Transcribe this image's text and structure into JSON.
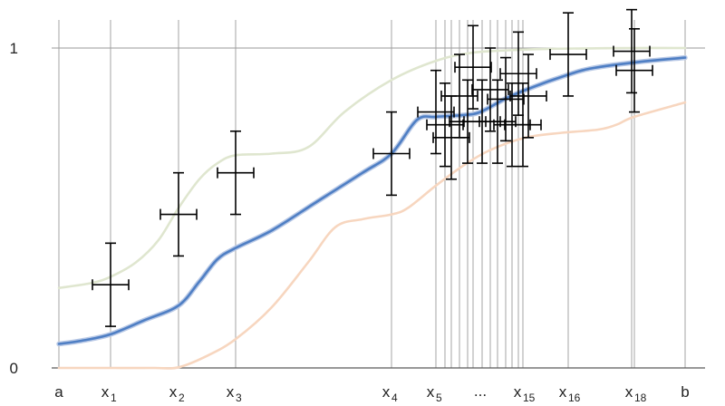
{
  "chart_data": {
    "type": "line",
    "title": "",
    "xlabel": "",
    "ylabel": "",
    "xlim": [
      0,
      800
    ],
    "ylim": [
      0,
      1
    ],
    "y_ticks": [
      {
        "value": 0,
        "label": "0"
      },
      {
        "value": 1,
        "label": "1"
      }
    ],
    "x_ticks": [
      {
        "value": 65,
        "base": "a",
        "sub": ""
      },
      {
        "value": 122,
        "base": "x",
        "sub": "1"
      },
      {
        "value": 197,
        "base": "x",
        "sub": "2"
      },
      {
        "value": 260,
        "base": "x",
        "sub": "3"
      },
      {
        "value": 432,
        "base": "x",
        "sub": "4"
      },
      {
        "value": 481,
        "base": "x",
        "sub": "5"
      },
      {
        "value": 530,
        "base": "...",
        "sub": ""
      },
      {
        "value": 577,
        "base": "x",
        "sub": "15"
      },
      {
        "value": 627,
        "base": "x",
        "sub": "16"
      },
      {
        "value": 700,
        "base": "x",
        "sub": "18"
      },
      {
        "value": 756,
        "base": "b",
        "sub": ""
      }
    ],
    "vertical_gridlines_x": [
      65,
      122,
      197,
      260,
      432,
      481,
      491,
      498,
      507,
      516,
      522,
      532,
      541,
      549,
      558,
      565,
      572,
      577,
      627,
      697,
      700,
      756
    ],
    "grid": true,
    "colors": {
      "mean": "#4f7fc4",
      "mean_halo": "#b9c9e6",
      "upper": "#dfe6cf",
      "lower": "#f7d6bf",
      "error_bars": "#000000",
      "grid": "#9a9a9a",
      "axis": "#5a5a5a"
    },
    "series": [
      {
        "role": "upper",
        "x": [
          65,
          100,
          122,
          150,
          175,
          197,
          220,
          240,
          260,
          300,
          340,
          380,
          432,
          481,
          520,
          560,
          600,
          650,
          700,
          756
        ],
        "values": [
          0.25,
          0.265,
          0.285,
          0.33,
          0.4,
          0.5,
          0.59,
          0.64,
          0.665,
          0.67,
          0.69,
          0.8,
          0.9,
          0.96,
          0.985,
          0.993,
          0.997,
          0.999,
          1.0,
          1.0
        ]
      },
      {
        "role": "mean",
        "x": [
          65,
          90,
          122,
          160,
          197,
          220,
          240,
          260,
          300,
          350,
          400,
          432,
          460,
          481,
          510,
          530,
          560,
          590,
          620,
          650,
          700,
          756
        ],
        "values": [
          0.075,
          0.085,
          0.105,
          0.15,
          0.195,
          0.27,
          0.34,
          0.375,
          0.43,
          0.52,
          0.61,
          0.67,
          0.775,
          0.785,
          0.79,
          0.8,
          0.845,
          0.88,
          0.91,
          0.935,
          0.955,
          0.97
        ]
      },
      {
        "role": "lower",
        "x": [
          65,
          120,
          170,
          197,
          230,
          260,
          300,
          340,
          370,
          400,
          432,
          450,
          481,
          510,
          540,
          580,
          620,
          660,
          680,
          700,
          756
        ],
        "values": [
          0.0,
          0.0,
          0.0,
          0.002,
          0.04,
          0.09,
          0.19,
          0.33,
          0.44,
          0.465,
          0.48,
          0.5,
          0.57,
          0.63,
          0.68,
          0.72,
          0.735,
          0.745,
          0.76,
          0.785,
          0.83
        ]
      }
    ],
    "points": [
      {
        "x": 122,
        "y": 0.26,
        "x_err": 20,
        "y_err": 0.13
      },
      {
        "x": 197,
        "y": 0.48,
        "x_err": 20,
        "y_err": 0.13
      },
      {
        "x": 260,
        "y": 0.61,
        "x_err": 20,
        "y_err": 0.13
      },
      {
        "x": 432,
        "y": 0.67,
        "x_err": 20,
        "y_err": 0.13
      },
      {
        "x": 481,
        "y": 0.8,
        "x_err": 20,
        "y_err": 0.13
      },
      {
        "x": 491,
        "y": 0.76,
        "x_err": 20,
        "y_err": 0.13
      },
      {
        "x": 498,
        "y": 0.72,
        "x_err": 20,
        "y_err": 0.13
      },
      {
        "x": 507,
        "y": 0.85,
        "x_err": 20,
        "y_err": 0.13
      },
      {
        "x": 516,
        "y": 0.77,
        "x_err": 20,
        "y_err": 0.13
      },
      {
        "x": 522,
        "y": 0.94,
        "x_err": 20,
        "y_err": 0.13
      },
      {
        "x": 532,
        "y": 0.77,
        "x_err": 20,
        "y_err": 0.13
      },
      {
        "x": 541,
        "y": 0.87,
        "x_err": 20,
        "y_err": 0.13
      },
      {
        "x": 549,
        "y": 0.77,
        "x_err": 20,
        "y_err": 0.13
      },
      {
        "x": 558,
        "y": 0.84,
        "x_err": 20,
        "y_err": 0.13
      },
      {
        "x": 565,
        "y": 0.76,
        "x_err": 20,
        "y_err": 0.13
      },
      {
        "x": 572,
        "y": 0.92,
        "x_err": 20,
        "y_err": 0.13
      },
      {
        "x": 577,
        "y": 0.76,
        "x_err": 20,
        "y_err": 0.13
      },
      {
        "x": 583,
        "y": 0.85,
        "x_err": 20,
        "y_err": 0.13
      },
      {
        "x": 627,
        "y": 0.98,
        "x_err": 20,
        "y_err": 0.13
      },
      {
        "x": 697,
        "y": 0.99,
        "x_err": 20,
        "y_err": 0.13
      },
      {
        "x": 700,
        "y": 0.93,
        "x_err": 20,
        "y_err": 0.13
      }
    ]
  }
}
